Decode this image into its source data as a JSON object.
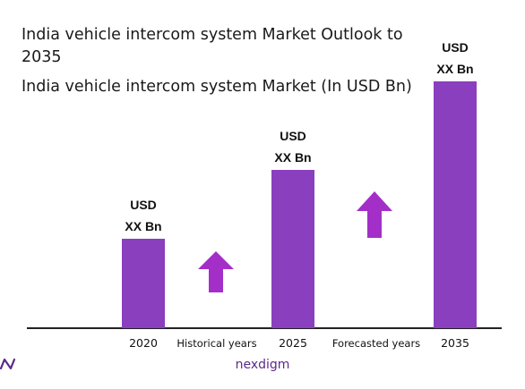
{
  "chart_data": {
    "type": "bar",
    "title": "India vehicle intercom system Market Outlook to 2035",
    "subtitle": "India vehicle intercom system Market (In USD Bn)",
    "categories": [
      "2020",
      "2025",
      "2035"
    ],
    "values": [
      100,
      177,
      276
    ],
    "value_labels": [
      {
        "line1": "USD",
        "line2": "XX Bn"
      },
      {
        "line1": "USD",
        "line2": "XX Bn"
      },
      {
        "line1": "USD",
        "line2": "XX Bn"
      }
    ],
    "period_labels": [
      "Historical years",
      "Forecasted years"
    ],
    "bar_color": "#8a3fbe",
    "arrow_color": "#a32fc8",
    "ylim": [
      0,
      276
    ],
    "grid": false,
    "legend": "none"
  },
  "brand": {
    "name": "nexdigm",
    "color": "#5a2a8a"
  }
}
